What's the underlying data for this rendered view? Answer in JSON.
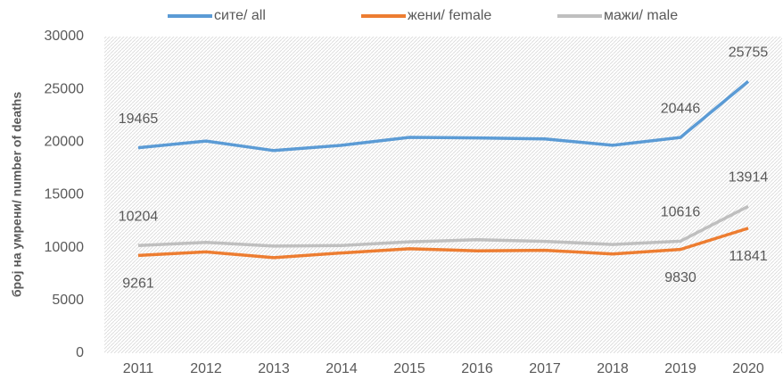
{
  "chart_data": {
    "type": "line",
    "y_label": "број на умрени/ number of deaths",
    "categories": [
      "2011",
      "2012",
      "2013",
      "2014",
      "2015",
      "2016",
      "2017",
      "2018",
      "2019",
      "2020"
    ],
    "series": [
      {
        "name": "сите/ all",
        "color": "#5b9bd5",
        "values": [
          19465,
          20100,
          19200,
          19700,
          20450,
          20400,
          20300,
          19700,
          20446,
          25755
        ],
        "labeled": [
          0,
          8,
          9
        ],
        "label_position": "above"
      },
      {
        "name": "жени/ female",
        "color": "#ed7d31",
        "values": [
          9261,
          9600,
          9050,
          9500,
          9900,
          9700,
          9750,
          9400,
          9830,
          11841
        ],
        "labeled": [
          0,
          8,
          9
        ],
        "label_position": "below"
      },
      {
        "name": "мажи/ male",
        "color": "#bfbfbf",
        "values": [
          10204,
          10500,
          10150,
          10200,
          10550,
          10750,
          10600,
          10300,
          10616,
          13914
        ],
        "labeled": [
          0,
          8,
          9
        ],
        "label_position": "above"
      }
    ],
    "ylim": [
      0,
      30000
    ],
    "yticks": [
      0,
      5000,
      10000,
      15000,
      20000,
      25000,
      30000
    ],
    "grid": false,
    "legend": "top"
  }
}
